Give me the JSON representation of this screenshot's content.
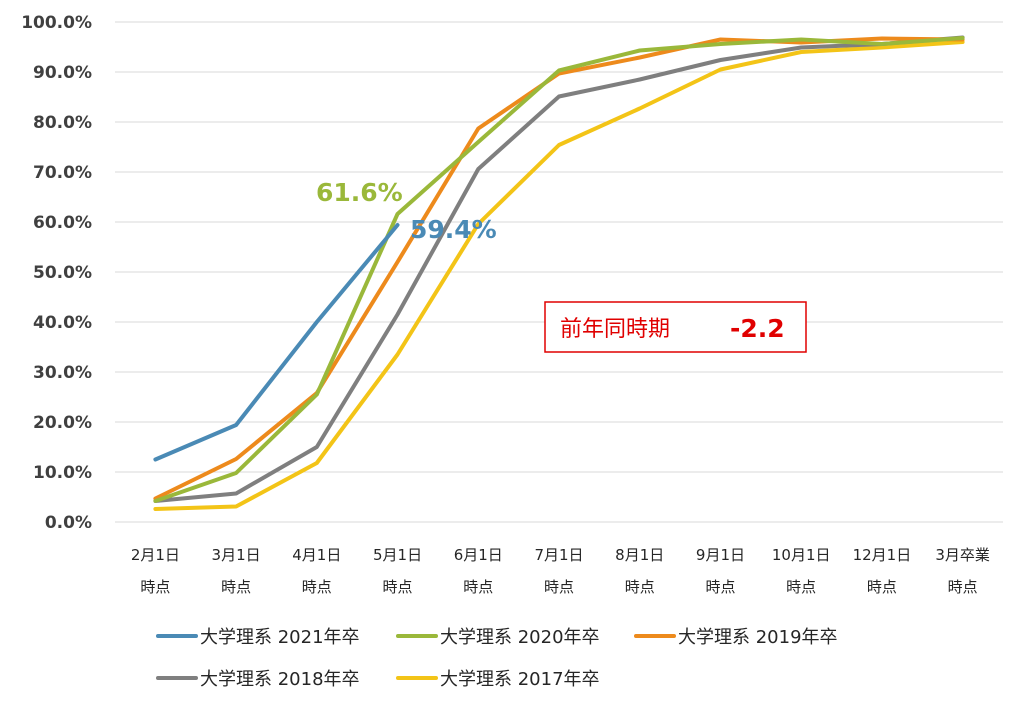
{
  "chart_data": {
    "type": "line",
    "categories": [
      [
        "2月1日",
        "時点"
      ],
      [
        "3月1日",
        "時点"
      ],
      [
        "4月1日",
        "時点"
      ],
      [
        "5月1日",
        "時点"
      ],
      [
        "6月1日",
        "時点"
      ],
      [
        "7月1日",
        "時点"
      ],
      [
        "8月1日",
        "時点"
      ],
      [
        "9月1日",
        "時点"
      ],
      [
        "10月1日",
        "時点"
      ],
      [
        "12月1日",
        "時点"
      ],
      [
        "3月卒業",
        "時点"
      ]
    ],
    "ylim": [
      0,
      100
    ],
    "yticks": [
      "0.0%",
      "10.0%",
      "20.0%",
      "30.0%",
      "40.0%",
      "50.0%",
      "60.0%",
      "70.0%",
      "80.0%",
      "90.0%",
      "100.0%"
    ],
    "grid": true,
    "legend_position": "bottom",
    "series": [
      {
        "name": "大学理系 2021年卒",
        "color": "#4a8ab5",
        "values": [
          12.5,
          19.4,
          40.0,
          59.4,
          null,
          null,
          null,
          null,
          null,
          null,
          null
        ]
      },
      {
        "name": "大学理系 2020年卒",
        "color": "#9ab83a",
        "values": [
          4.2,
          9.8,
          25.5,
          61.6,
          76.0,
          90.3,
          94.3,
          95.6,
          96.5,
          95.6,
          96.8
        ]
      },
      {
        "name": "大学理系 2019年卒",
        "color": "#ed8a1c",
        "values": [
          4.7,
          12.6,
          25.8,
          52.0,
          78.7,
          89.7,
          92.9,
          96.5,
          95.9,
          96.7,
          96.5
        ]
      },
      {
        "name": "大学理系 2018年卒",
        "color": "#7f7f7f",
        "values": [
          4.2,
          5.7,
          15.0,
          41.5,
          70.6,
          85.1,
          88.5,
          92.4,
          94.9,
          95.6,
          96.9
        ]
      },
      {
        "name": "大学理系 2017年卒",
        "color": "#f3c417",
        "values": [
          2.6,
          3.1,
          11.8,
          33.5,
          59.6,
          75.4,
          82.7,
          90.5,
          94.0,
          94.9,
          96.0
        ]
      }
    ],
    "annotations": [
      {
        "text": "61.6%",
        "color": "#9ab83a"
      },
      {
        "text": "59.4%",
        "color": "#4a8ab5"
      }
    ]
  },
  "callout": {
    "label": "前年同時期",
    "value": "-2.2",
    "color": "#e00000"
  }
}
